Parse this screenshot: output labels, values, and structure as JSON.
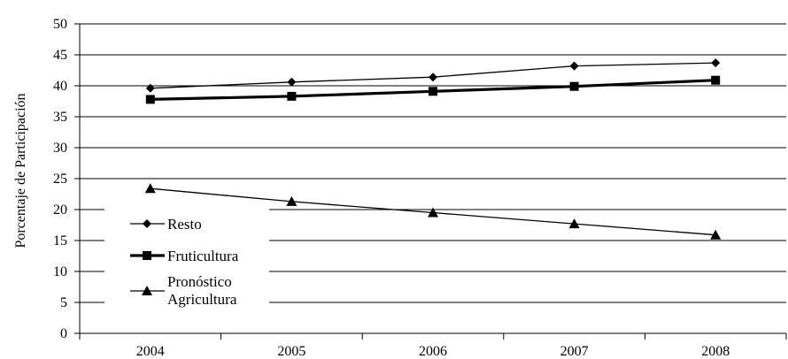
{
  "chart_data": {
    "type": "line",
    "title": "",
    "xlabel": "",
    "ylabel": "Porcentaje de Participación",
    "categories": [
      "2004",
      "2005",
      "2006",
      "2007",
      "2008"
    ],
    "ylim": [
      0,
      50
    ],
    "yticks": [
      "0",
      "5",
      "10",
      "15",
      "20",
      "25",
      "30",
      "35",
      "40",
      "45",
      "50"
    ],
    "grid": true,
    "legend_position": "bottom-left",
    "series": [
      {
        "name": "Resto",
        "marker": "diamond",
        "values": [
          39.6,
          40.6,
          41.4,
          43.2,
          43.7
        ]
      },
      {
        "name": "Fruticultura",
        "marker": "square",
        "values": [
          37.8,
          38.3,
          39.1,
          39.9,
          40.9
        ]
      },
      {
        "name": "Pronóstico Agricultura",
        "name_lines": [
          "Pronóstico",
          "Agricultura"
        ],
        "marker": "triangle",
        "values": [
          23.4,
          21.3,
          19.5,
          17.7,
          15.9
        ]
      }
    ]
  }
}
